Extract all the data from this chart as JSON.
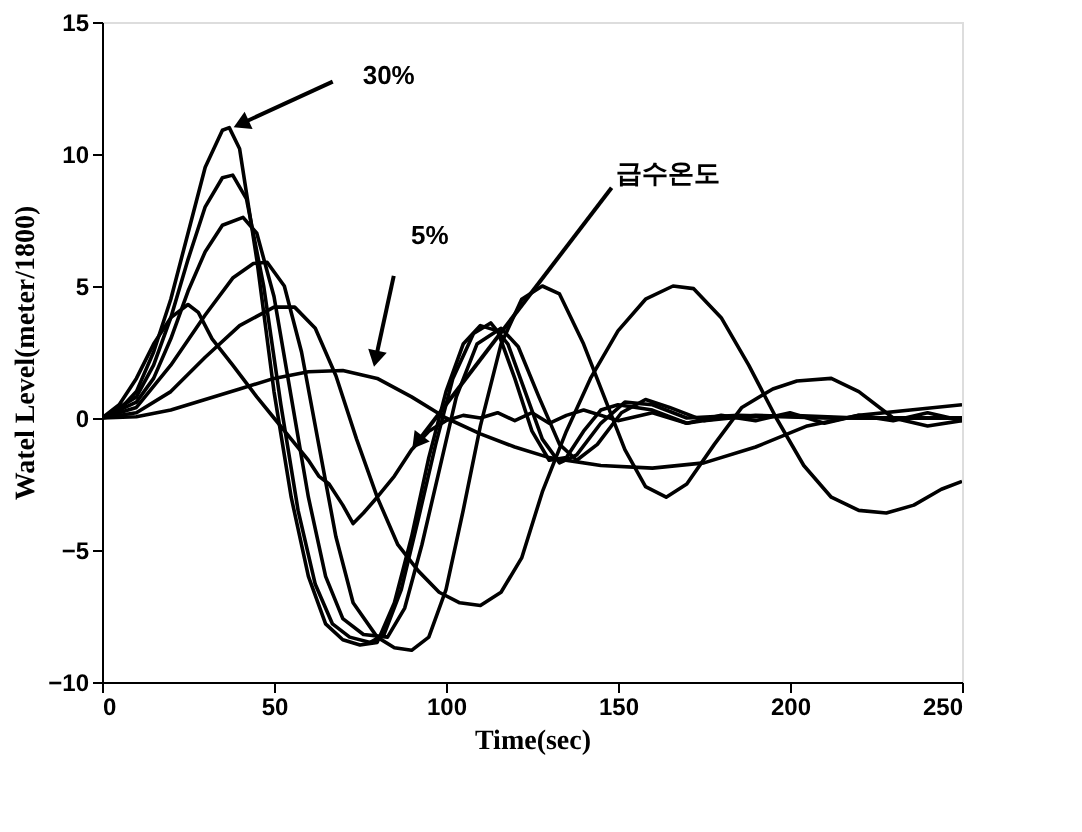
{
  "chart_data": {
    "type": "line",
    "xlabel": "Time(sec)",
    "ylabel": "Watel Level(meter/1800)",
    "xlim": [
      0,
      250
    ],
    "ylim": [
      -10,
      15
    ],
    "xticks": [
      0,
      50,
      100,
      150,
      200,
      250
    ],
    "yticks": [
      -10,
      -5,
      0,
      5,
      10,
      15
    ],
    "grid": false,
    "line_style": "solid",
    "annotations": [
      {
        "text": "30%",
        "x": 38,
        "y": 11
      },
      {
        "text": "5%",
        "x": 79,
        "y": 1.9
      },
      {
        "text": "급수온도",
        "x": 90,
        "y": -1.2
      }
    ],
    "series": [
      {
        "color": "#000000",
        "x": [
          0,
          5,
          10,
          15,
          20,
          25,
          30,
          35,
          37,
          40,
          45,
          50,
          55,
          60,
          65,
          70,
          75,
          80,
          85,
          90,
          95,
          100,
          105,
          110,
          115,
          120,
          125,
          130,
          135,
          140,
          145,
          150,
          160,
          170,
          180,
          200,
          220,
          250
        ],
        "values": [
          0,
          0.3,
          1,
          2.5,
          4.5,
          7,
          9.5,
          10.9,
          11,
          10.2,
          6,
          1,
          -3,
          -6,
          -7.8,
          -8.4,
          -8.6,
          -8.5,
          -7,
          -4.5,
          -1.5,
          1,
          2.8,
          3.5,
          3.3,
          1.5,
          -0.5,
          -1.6,
          -1.5,
          -0.5,
          0.3,
          0.5,
          0.3,
          -0.2,
          0,
          0.1,
          0,
          0
        ]
      },
      {
        "color": "#000000",
        "x": [
          0,
          10,
          15,
          20,
          25,
          30,
          35,
          38,
          42,
          47,
          52,
          57,
          62,
          67,
          72,
          78,
          82,
          87,
          92,
          97,
          102,
          108,
          113,
          118,
          123,
          128,
          133,
          138,
          145,
          152,
          160,
          170,
          185,
          210,
          250
        ],
        "values": [
          0,
          0.8,
          2,
          3.8,
          6,
          8,
          9.1,
          9.2,
          8.3,
          5,
          0.5,
          -3.5,
          -6.3,
          -7.8,
          -8.3,
          -8.5,
          -8.2,
          -6.5,
          -3.8,
          -1,
          1.5,
          3.2,
          3.6,
          2.8,
          1,
          -0.8,
          -1.7,
          -1.4,
          -0.2,
          0.6,
          0.5,
          0,
          0.1,
          0,
          0
        ]
      },
      {
        "color": "#000000",
        "x": [
          0,
          10,
          15,
          20,
          25,
          30,
          35,
          41,
          45,
          50,
          55,
          60,
          65,
          70,
          76,
          83,
          88,
          93,
          98,
          103,
          109,
          116,
          121,
          127,
          133,
          138,
          144,
          151,
          158,
          165,
          175,
          190,
          215,
          250
        ],
        "values": [
          0,
          0.6,
          1.5,
          3,
          4.8,
          6.3,
          7.3,
          7.6,
          7,
          4.6,
          0.8,
          -3,
          -6,
          -7.6,
          -8.2,
          -8.3,
          -7.2,
          -4.8,
          -2,
          0.8,
          2.8,
          3.4,
          2.7,
          0.8,
          -1,
          -1.6,
          -1,
          0.2,
          0.7,
          0.4,
          -0.1,
          0.1,
          0,
          0
        ]
      },
      {
        "color": "#000000",
        "x": [
          0,
          10,
          20,
          30,
          38,
          44,
          48,
          53,
          58,
          63,
          68,
          73,
          80,
          85,
          90,
          95,
          100,
          105,
          110,
          116,
          122,
          128,
          133,
          140,
          146,
          152,
          158,
          164,
          170,
          178,
          186,
          195,
          202,
          212,
          220,
          230,
          240,
          250
        ],
        "values": [
          0,
          0.4,
          2,
          3.9,
          5.3,
          5.85,
          5.9,
          5,
          2.5,
          -1,
          -4.5,
          -7,
          -8.3,
          -8.7,
          -8.8,
          -8.3,
          -6.5,
          -3.5,
          -0.3,
          2.8,
          4.5,
          5,
          4.7,
          2.8,
          0.8,
          -1.2,
          -2.6,
          -3,
          -2.5,
          -1,
          0.4,
          1.1,
          1.4,
          1.5,
          1,
          0,
          -0.3,
          -0.1
        ]
      },
      {
        "color": "#000000",
        "x": [
          0,
          10,
          20,
          30,
          40,
          50,
          56,
          62,
          68,
          74,
          80,
          86,
          92,
          98,
          104,
          110,
          116,
          122,
          128,
          135,
          142,
          150,
          158,
          166,
          172,
          180,
          188,
          196,
          204,
          212,
          220,
          228,
          236,
          244,
          250
        ],
        "values": [
          0,
          0.2,
          1,
          2.3,
          3.5,
          4.2,
          4.2,
          3.4,
          1.6,
          -0.8,
          -3,
          -4.8,
          -5.8,
          -6.6,
          -7,
          -7.1,
          -6.6,
          -5.3,
          -2.8,
          -0.5,
          1.5,
          3.3,
          4.5,
          5,
          4.9,
          3.8,
          2,
          0,
          -1.8,
          -3,
          -3.5,
          -3.6,
          -3.3,
          -2.7,
          -2.4
        ]
      },
      {
        "color": "#000000",
        "x": [
          0,
          10,
          20,
          30,
          40,
          50,
          60,
          70,
          80,
          90,
          100,
          110,
          120,
          130,
          145,
          160,
          175,
          190,
          205,
          220,
          235,
          250
        ],
        "values": [
          0,
          0.05,
          0.3,
          0.7,
          1.1,
          1.5,
          1.75,
          1.8,
          1.5,
          0.8,
          0,
          -0.6,
          -1.1,
          -1.5,
          -1.8,
          -1.9,
          -1.7,
          -1.1,
          -0.3,
          0.1,
          0.3,
          0.5
        ]
      },
      {
        "color": "#000000",
        "x": [
          0,
          5,
          10,
          15,
          20,
          25,
          28,
          32,
          38,
          45,
          50,
          55,
          60,
          63,
          66,
          70,
          73,
          76,
          80,
          85,
          90,
          95,
          100,
          105,
          110,
          115,
          120,
          125,
          130,
          135,
          140,
          150,
          160,
          170,
          180,
          190,
          200,
          210,
          220,
          230,
          240,
          250
        ],
        "values": [
          0,
          0.5,
          1.5,
          2.8,
          3.8,
          4.3,
          4,
          3,
          2,
          0.8,
          0,
          -0.8,
          -1.6,
          -2.2,
          -2.5,
          -3.3,
          -4,
          -3.6,
          -3,
          -2.2,
          -1.2,
          -0.5,
          -0.1,
          0.1,
          0,
          0.2,
          -0.1,
          0.2,
          -0.2,
          0.1,
          0.3,
          -0.1,
          0.2,
          -0.2,
          0.1,
          -0.1,
          0.2,
          -0.2,
          0.1,
          -0.1,
          0.2,
          -0.1
        ]
      }
    ]
  }
}
